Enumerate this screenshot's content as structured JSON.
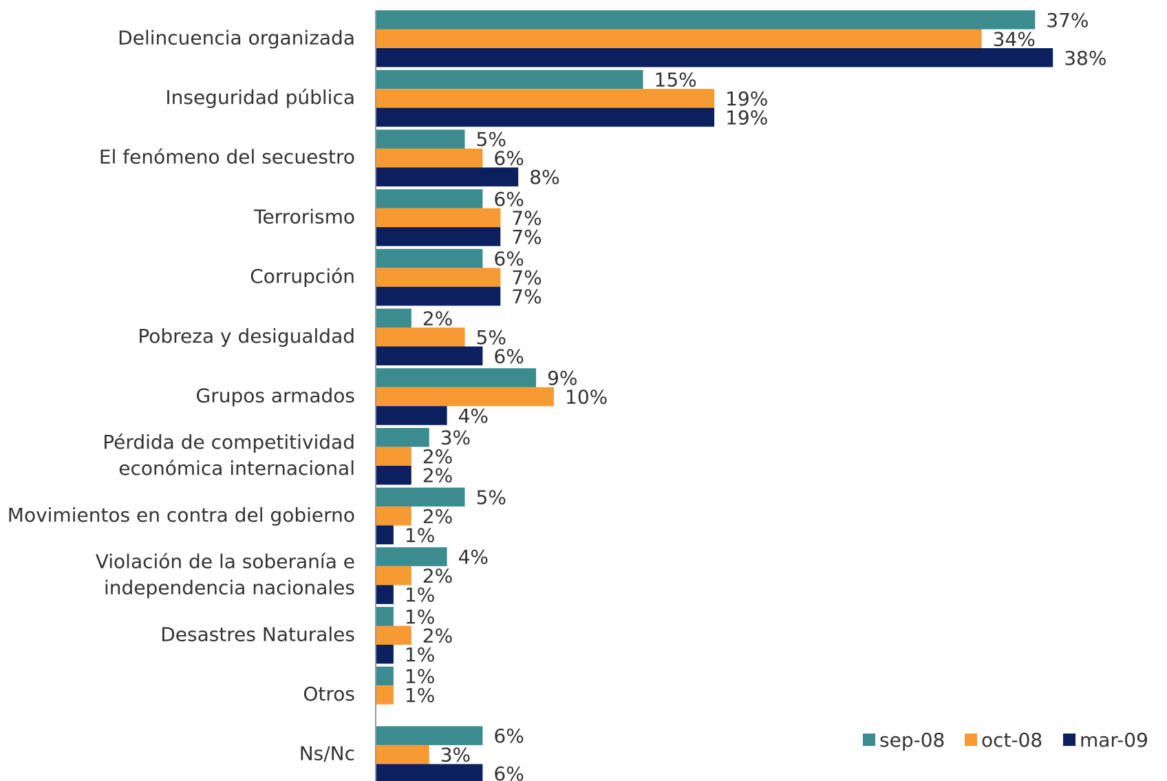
{
  "chart_data": {
    "type": "hbar",
    "categories": [
      "Delincuencia organizada",
      "Inseguridad pública",
      "El fenómeno del secuestro",
      "Terrorismo",
      "Corrupción",
      "Pobreza y desigualdad",
      "Grupos armados",
      "Pérdida de competitividad\neconómica internacional",
      "Movimientos en contra del gobierno",
      "Violación de la soberanía e\nindependencia nacionales",
      "Desastres Naturales",
      "Otros",
      "Ns/Nc"
    ],
    "series": [
      {
        "name": "sep-08",
        "color": "#3a8c8f",
        "values": [
          37,
          15,
          5,
          6,
          6,
          2,
          9,
          3,
          5,
          4,
          1,
          1,
          6
        ],
        "value_labels": [
          "37%",
          "15%",
          "5%",
          "6%",
          "6%",
          "2%",
          "9%",
          "3%",
          "5%",
          "4%",
          "1%",
          "1%",
          "6%"
        ]
      },
      {
        "name": "oct-08",
        "color": "#f79a32",
        "values": [
          34,
          19,
          6,
          7,
          7,
          5,
          10,
          2,
          2,
          2,
          2,
          1,
          3
        ],
        "value_labels": [
          "34%",
          "19%",
          "6%",
          "7%",
          "7%",
          "5%",
          "10%",
          "2%",
          "2%",
          "2%",
          "2%",
          "1%",
          "3%"
        ]
      },
      {
        "name": "mar-09",
        "color": "#0c1f5e",
        "values": [
          38,
          19,
          8,
          7,
          7,
          6,
          4,
          2,
          1,
          1,
          1,
          null,
          6
        ],
        "value_labels": [
          "38%",
          "19%",
          "8%",
          "7%",
          "7%",
          "6%",
          "4%",
          "2%",
          "1%",
          "1%",
          "1%",
          null,
          "6%"
        ]
      }
    ],
    "legend": "bottom-right"
  }
}
